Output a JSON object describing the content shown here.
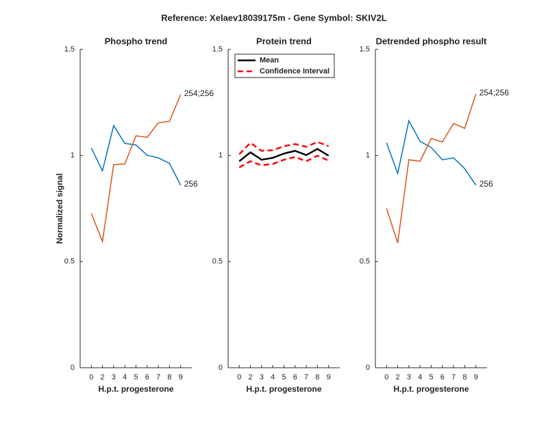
{
  "figure_title": "Reference:  Xelaev18039175m - Gene Symbol:  SKIV2L",
  "chart_data": [
    {
      "type": "line",
      "title": "Phospho trend",
      "xlabel": "H.p.t. progesterone",
      "ylabel": "Normalized signal",
      "categories": [
        "0",
        "2",
        "3",
        "4",
        "5",
        "6",
        "7",
        "8",
        "9"
      ],
      "ylim": [
        0,
        1.5
      ],
      "yticks": [
        0,
        0.5,
        1,
        1.5
      ],
      "series": [
        {
          "name": "256",
          "color": "#0072BD",
          "values": [
            1.035,
            0.928,
            1.141,
            1.057,
            1.05,
            1.001,
            0.989,
            0.963,
            0.86
          ]
        },
        {
          "name": "254;256",
          "color": "#D95319",
          "values": [
            0.727,
            0.595,
            0.957,
            0.96,
            1.093,
            1.086,
            1.154,
            1.161,
            1.287
          ]
        }
      ]
    },
    {
      "type": "line",
      "title": "Protein trend",
      "xlabel": "H.p.t. progesterone",
      "legend": "northwest",
      "categories": [
        "0",
        "2",
        "3",
        "4",
        "5",
        "6",
        "7",
        "8",
        "9"
      ],
      "ylim": [
        0,
        1.5
      ],
      "yticks": [
        0,
        0.5,
        1,
        1.5
      ],
      "series": [
        {
          "name": "Mean",
          "color": "#000000",
          "values": [
            0.973,
            1.015,
            0.98,
            0.989,
            1.009,
            1.022,
            1.002,
            1.031,
            0.999
          ]
        },
        {
          "name": "Confidence Interval",
          "color": "#ff0000",
          "dashed": true,
          "upper": [
            1.006,
            1.06,
            1.022,
            1.025,
            1.044,
            1.054,
            1.041,
            1.064,
            1.044
          ],
          "lower": [
            0.944,
            0.973,
            0.954,
            0.96,
            0.98,
            0.993,
            0.973,
            0.999,
            0.976
          ]
        }
      ]
    },
    {
      "type": "line",
      "title": "Detrended phospho result",
      "xlabel": "H.p.t. progesterone",
      "categories": [
        "0",
        "2",
        "3",
        "4",
        "5",
        "6",
        "7",
        "8",
        "9"
      ],
      "ylim": [
        0,
        1.5
      ],
      "yticks": [
        0,
        0.5,
        1,
        1.5
      ],
      "series": [
        {
          "name": "256",
          "color": "#0072BD",
          "values": [
            1.06,
            0.915,
            1.164,
            1.067,
            1.038,
            0.98,
            0.989,
            0.938,
            0.86
          ]
        },
        {
          "name": "254;256",
          "color": "#D95319",
          "values": [
            0.75,
            0.588,
            0.98,
            0.973,
            1.08,
            1.064,
            1.151,
            1.128,
            1.29
          ]
        }
      ]
    }
  ]
}
